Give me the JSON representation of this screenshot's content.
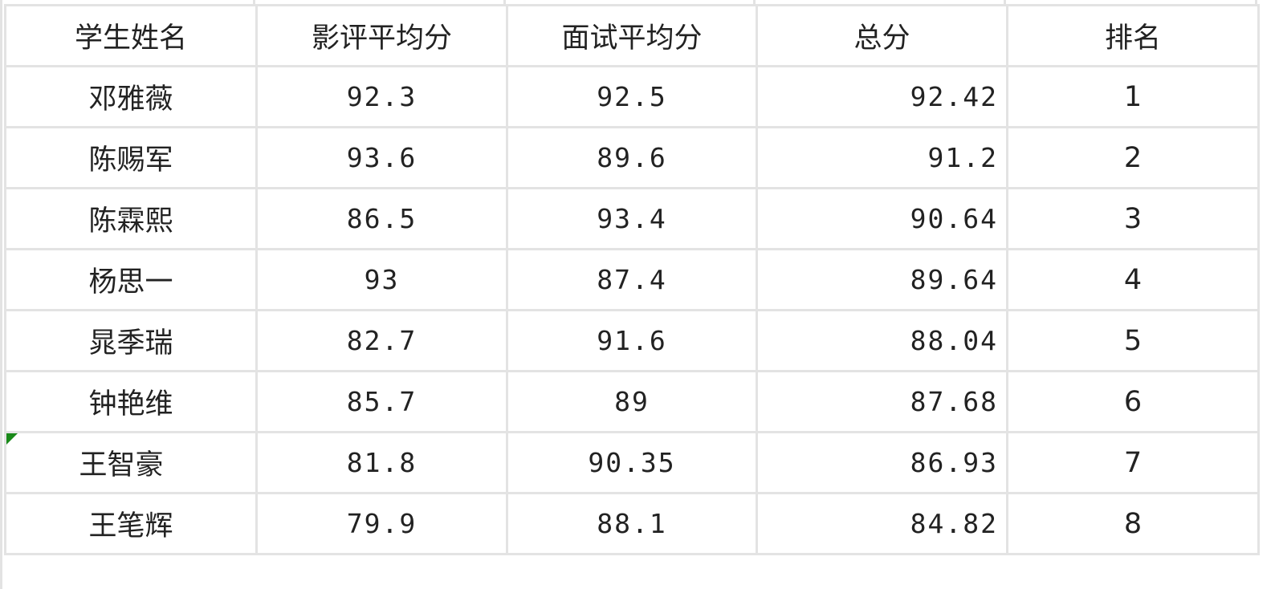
{
  "table": {
    "headers": [
      "学生姓名",
      "影评平均分",
      "面试平均分",
      "总分",
      "排名"
    ],
    "rows": [
      [
        "邓雅薇",
        "92.3",
        "92.5",
        "92.42",
        "1"
      ],
      [
        "陈赐军",
        "93.6",
        "89.6",
        "91.2",
        "2"
      ],
      [
        "陈霖熙",
        "86.5",
        "93.4",
        "90.64",
        "3"
      ],
      [
        "杨思一",
        "93",
        "87.4",
        "89.64",
        "4"
      ],
      [
        "晁季瑞",
        "82.7",
        "91.6",
        "88.04",
        "5"
      ],
      [
        "钟艳维",
        "85.7",
        "89",
        "87.68",
        "6"
      ],
      [
        "王智豪",
        "81.8",
        "90.35",
        "86.93",
        "7"
      ],
      [
        "王笔辉",
        "79.9",
        "88.1",
        "84.82",
        "8"
      ]
    ],
    "comment_indicator_row": 6,
    "comment_indicator_color": "#1a8a1a",
    "gridline_color": "#e3e3e3"
  }
}
